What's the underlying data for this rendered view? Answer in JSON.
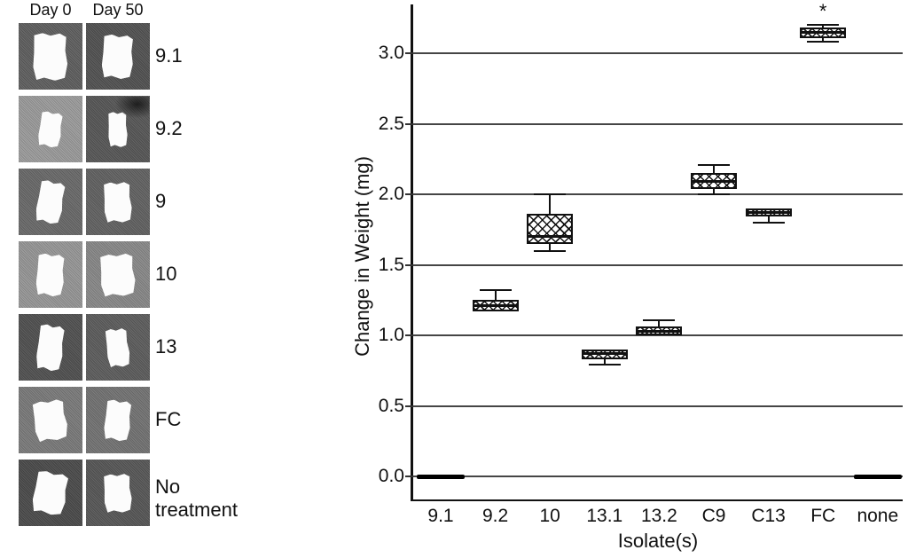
{
  "photo_panel": {
    "col_headers": [
      "Day 0",
      "Day 50"
    ],
    "rows": [
      {
        "label": "9.1",
        "cells": [
          {
            "bg": "#606060",
            "pw": 40,
            "ph": 54,
            "rot": -2
          },
          {
            "bg": "#535353",
            "pw": 36,
            "ph": 50,
            "rot": 1
          }
        ]
      },
      {
        "label": "9.2",
        "cells": [
          {
            "bg": "#9d9d9d",
            "pw": 26,
            "ph": 40,
            "rot": 6
          },
          {
            "bg": "#585858",
            "pw": 22,
            "ph": 40,
            "rot": -3,
            "smudge": true
          }
        ]
      },
      {
        "label": "9",
        "cells": [
          {
            "bg": "#6b6b6b",
            "pw": 30,
            "ph": 48,
            "rot": 8
          },
          {
            "bg": "#636363",
            "pw": 32,
            "ph": 46,
            "rot": -5
          }
        ]
      },
      {
        "label": "10",
        "cells": [
          {
            "bg": "#989898",
            "pw": 32,
            "ph": 48,
            "rot": 2
          },
          {
            "bg": "#8a8a8a",
            "pw": 40,
            "ph": 48,
            "rot": -6
          }
        ]
      },
      {
        "label": "13",
        "cells": [
          {
            "bg": "#525252",
            "pw": 30,
            "ph": 52,
            "rot": 5
          },
          {
            "bg": "#5e5e5e",
            "pw": 26,
            "ph": 44,
            "rot": -8
          }
        ]
      },
      {
        "label": "FC",
        "cells": [
          {
            "bg": "#7c7c7c",
            "pw": 38,
            "ph": 46,
            "rot": -10
          },
          {
            "bg": "#747474",
            "pw": 30,
            "ph": 46,
            "rot": 4
          }
        ]
      },
      {
        "label": "No treatment",
        "cells": [
          {
            "bg": "#4c4c4c",
            "pw": 38,
            "ph": 48,
            "rot": 8
          },
          {
            "bg": "#585858",
            "pw": 32,
            "ph": 44,
            "rot": -5
          }
        ]
      }
    ]
  },
  "chart_data": {
    "type": "box",
    "title": "",
    "xlabel": "Isolate(s)",
    "ylabel": "Change in Weight (mg)",
    "ylim": [
      -0.16,
      3.35
    ],
    "grid": true,
    "legend": "none",
    "yticks": [
      0.0,
      0.5,
      1.0,
      1.5,
      2.0,
      2.5,
      3.0
    ],
    "ytick_labels": [
      "0.0",
      "0.5",
      "1.0",
      "1.5",
      "2.0",
      "2.5",
      "3.0"
    ],
    "categories": [
      "9.1",
      "9.2",
      "10",
      "13.1",
      "13.2",
      "C9",
      "C13",
      "FC",
      "none"
    ],
    "series": [
      {
        "name": "9.1",
        "type": "flat",
        "value": 0.0
      },
      {
        "name": "9.2",
        "type": "box",
        "q1": 1.17,
        "median": 1.21,
        "q3": 1.25,
        "whisker_high": 1.32
      },
      {
        "name": "10",
        "type": "box",
        "whisker_low": 1.6,
        "q1": 1.65,
        "median": 1.7,
        "q3": 1.86,
        "whisker_high": 2.0
      },
      {
        "name": "13.1",
        "type": "box",
        "whisker_low": 0.79,
        "q1": 0.83,
        "median": 0.87,
        "q3": 0.9
      },
      {
        "name": "13.2",
        "type": "box",
        "q1": 1.0,
        "median": 1.03,
        "q3": 1.06,
        "whisker_high": 1.11
      },
      {
        "name": "C9",
        "type": "box",
        "whisker_low": 2.0,
        "q1": 2.04,
        "median": 2.09,
        "q3": 2.15,
        "whisker_high": 2.21
      },
      {
        "name": "C13",
        "type": "box",
        "whisker_low": 1.8,
        "q1": 1.84,
        "median": 1.87,
        "q3": 1.9
      },
      {
        "name": "FC",
        "type": "box",
        "whisker_low": 3.08,
        "q1": 3.11,
        "median": 3.15,
        "q3": 3.18,
        "whisker_high": 3.2,
        "annotation": "*"
      },
      {
        "name": "none",
        "type": "flat",
        "value": 0.0
      }
    ],
    "annotations": [
      {
        "text": "*",
        "category": "FC",
        "meaning": "significance marker shown above FC box"
      }
    ]
  }
}
